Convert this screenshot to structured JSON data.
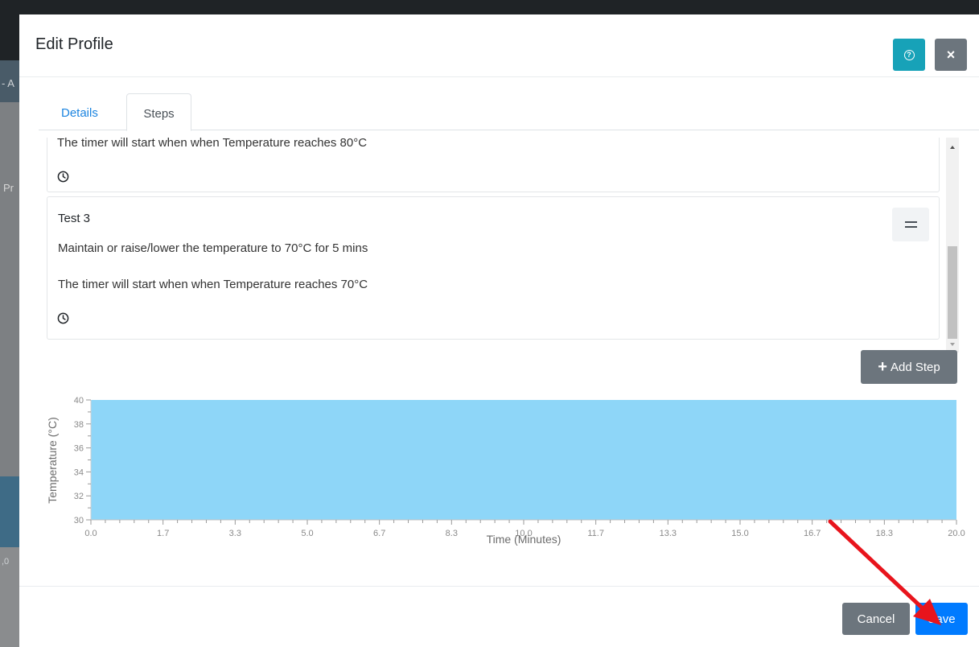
{
  "background": {
    "fragment_top": "- A",
    "fragment_mid": "Pr",
    "fragment_bottom": ",0"
  },
  "modal": {
    "title": "Edit Profile",
    "help_icon": "question-circle-icon",
    "close_label": "×"
  },
  "tabs": [
    {
      "label": "Details",
      "active": false
    },
    {
      "label": "Steps",
      "active": true
    }
  ],
  "steps": {
    "previous_partial_text": "The timer will start when when Temperature reaches 80°C",
    "items": [
      {
        "title": "Test 3",
        "line1": "Maintain or raise/lower the temperature to 70°C for 5 mins",
        "line2": "The timer will start when when Temperature reaches 70°C"
      }
    ]
  },
  "add_step_label": "Add Step",
  "chart_data": {
    "type": "area",
    "title": "",
    "xlabel": "Time (Minutes)",
    "ylabel": "Temperature (°C)",
    "xlim": [
      0,
      20
    ],
    "ylim": [
      30,
      40
    ],
    "xticks": [
      "0.0",
      "1.7",
      "3.3",
      "5.0",
      "6.7",
      "8.3",
      "10.0",
      "11.7",
      "13.3",
      "15.0",
      "16.7",
      "18.3",
      "20.0"
    ],
    "yticks": [
      "30",
      "32",
      "34",
      "36",
      "38",
      "40"
    ],
    "series": [
      {
        "x": [
          0,
          20
        ],
        "y": [
          40,
          40
        ],
        "color": "#8ed6f8"
      }
    ]
  },
  "footer": {
    "cancel_label": "Cancel",
    "save_label": "Save"
  },
  "colors": {
    "primary": "#007bff",
    "info": "#17a2b8",
    "secondary": "#6c757d",
    "annotation": "#e8141c"
  }
}
